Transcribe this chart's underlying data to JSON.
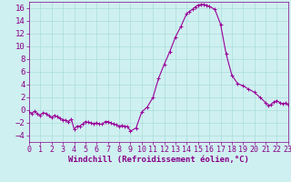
{
  "x": [
    0,
    0.25,
    0.5,
    0.75,
    1,
    1.25,
    1.5,
    1.75,
    2,
    2.25,
    2.5,
    2.75,
    3,
    3.25,
    3.5,
    3.75,
    4,
    4.25,
    4.5,
    4.75,
    5,
    5.25,
    5.5,
    5.75,
    6,
    6.25,
    6.5,
    6.75,
    7,
    7.25,
    7.5,
    7.75,
    8,
    8.25,
    8.5,
    8.75,
    9,
    9.5,
    10,
    10.5,
    11,
    11.5,
    12,
    12.5,
    13,
    13.5,
    14,
    14.25,
    14.5,
    14.75,
    15,
    15.25,
    15.5,
    15.75,
    16,
    16.5,
    17,
    17.5,
    18,
    18.5,
    19,
    19.5,
    20,
    20.5,
    21,
    21.25,
    21.5,
    21.75,
    22,
    22.25,
    22.5,
    22.75,
    23
  ],
  "y": [
    -0.3,
    -0.5,
    -0.2,
    -0.6,
    -0.8,
    -0.4,
    -0.5,
    -0.9,
    -1.2,
    -0.8,
    -1.0,
    -1.3,
    -1.5,
    -1.6,
    -1.8,
    -1.4,
    -3.0,
    -2.5,
    -2.5,
    -2.2,
    -1.8,
    -1.9,
    -2.0,
    -2.1,
    -2.0,
    -2.2,
    -2.2,
    -1.8,
    -1.8,
    -2.0,
    -2.2,
    -2.3,
    -2.5,
    -2.4,
    -2.5,
    -2.6,
    -3.3,
    -2.8,
    -0.3,
    0.5,
    2.0,
    5.0,
    7.2,
    9.2,
    11.5,
    13.2,
    15.2,
    15.5,
    15.8,
    16.2,
    16.5,
    16.6,
    16.6,
    16.5,
    16.3,
    15.8,
    13.5,
    8.8,
    5.5,
    4.2,
    3.8,
    3.3,
    2.8,
    2.0,
    1.2,
    0.7,
    0.9,
    1.3,
    1.5,
    1.2,
    1.0,
    1.1,
    0.9
  ],
  "line_color": "#990099",
  "marker": "+",
  "xlabel": "Windchill (Refroidissement éolien,°C)",
  "xlim": [
    0,
    23
  ],
  "ylim": [
    -5,
    17
  ],
  "yticks": [
    -4,
    -2,
    0,
    2,
    4,
    6,
    8,
    10,
    12,
    14,
    16
  ],
  "xticks": [
    0,
    1,
    2,
    3,
    4,
    5,
    6,
    7,
    8,
    9,
    10,
    11,
    12,
    13,
    14,
    15,
    16,
    17,
    18,
    19,
    20,
    21,
    22,
    23
  ],
  "bg_color": "#cff0f0",
  "grid_color": "#aadddd",
  "label_color": "#880088",
  "tick_color": "#880088",
  "spine_color": "#880088",
  "font_size": 6.5,
  "marker_size": 3.5,
  "line_width": 0.8
}
